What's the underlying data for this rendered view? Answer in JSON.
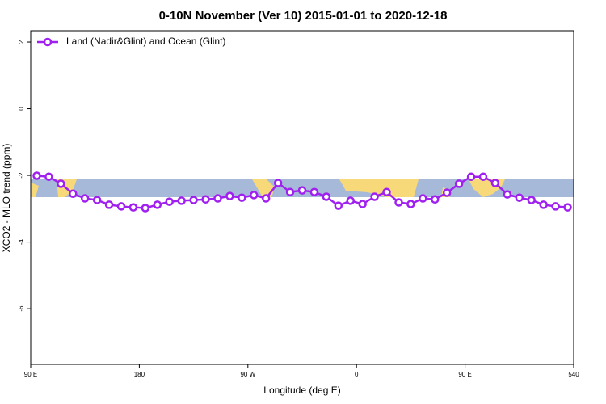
{
  "chart_data": {
    "type": "line",
    "title": "0-10N November (Ver 10)   2015-01-01 to 2020-12-18",
    "x_label": "Longitude (deg E)",
    "y_label": "XCO2 - MLO trend (ppm)",
    "x": [
      95,
      105,
      115,
      125,
      135,
      145,
      155,
      165,
      175,
      185,
      195,
      205,
      215,
      225,
      235,
      245,
      255,
      265,
      275,
      285,
      295,
      305,
      315,
      325,
      335,
      345,
      355,
      365,
      375,
      385,
      395,
      405,
      415,
      425,
      435,
      445,
      455,
      465,
      475,
      485,
      495,
      505,
      515,
      525,
      535
    ],
    "series": [
      {
        "name": "Land (Nadir&Glint) and Ocean (Glint)",
        "color": "#a020f0",
        "values": [
          -2.01,
          -2.04,
          -2.25,
          -2.55,
          -2.69,
          -2.74,
          -2.88,
          -2.93,
          -2.96,
          -2.98,
          -2.88,
          -2.79,
          -2.76,
          -2.74,
          -2.72,
          -2.69,
          -2.62,
          -2.67,
          -2.59,
          -2.69,
          -2.23,
          -2.5,
          -2.45,
          -2.5,
          -2.64,
          -2.91,
          -2.76,
          -2.86,
          -2.64,
          -2.5,
          -2.81,
          -2.86,
          -2.69,
          -2.72,
          -2.52,
          -2.25,
          -2.04,
          -2.04,
          -2.23,
          -2.57,
          -2.67,
          -2.74,
          -2.88,
          -2.93,
          -2.96
        ]
      }
    ],
    "xlim": [
      90,
      540
    ],
    "ylim": [
      -7.67,
      2.34
    ],
    "xticks": [
      {
        "value": 90,
        "label": "90 E"
      },
      180,
      {
        "value": 270,
        "label": "90 W"
      },
      {
        "value": 360,
        "label": "0"
      },
      {
        "value": 450,
        "label": "90 E"
      },
      540
    ],
    "yticks": [
      2,
      0,
      -2,
      -4,
      -6
    ],
    "legend": "top-left"
  }
}
